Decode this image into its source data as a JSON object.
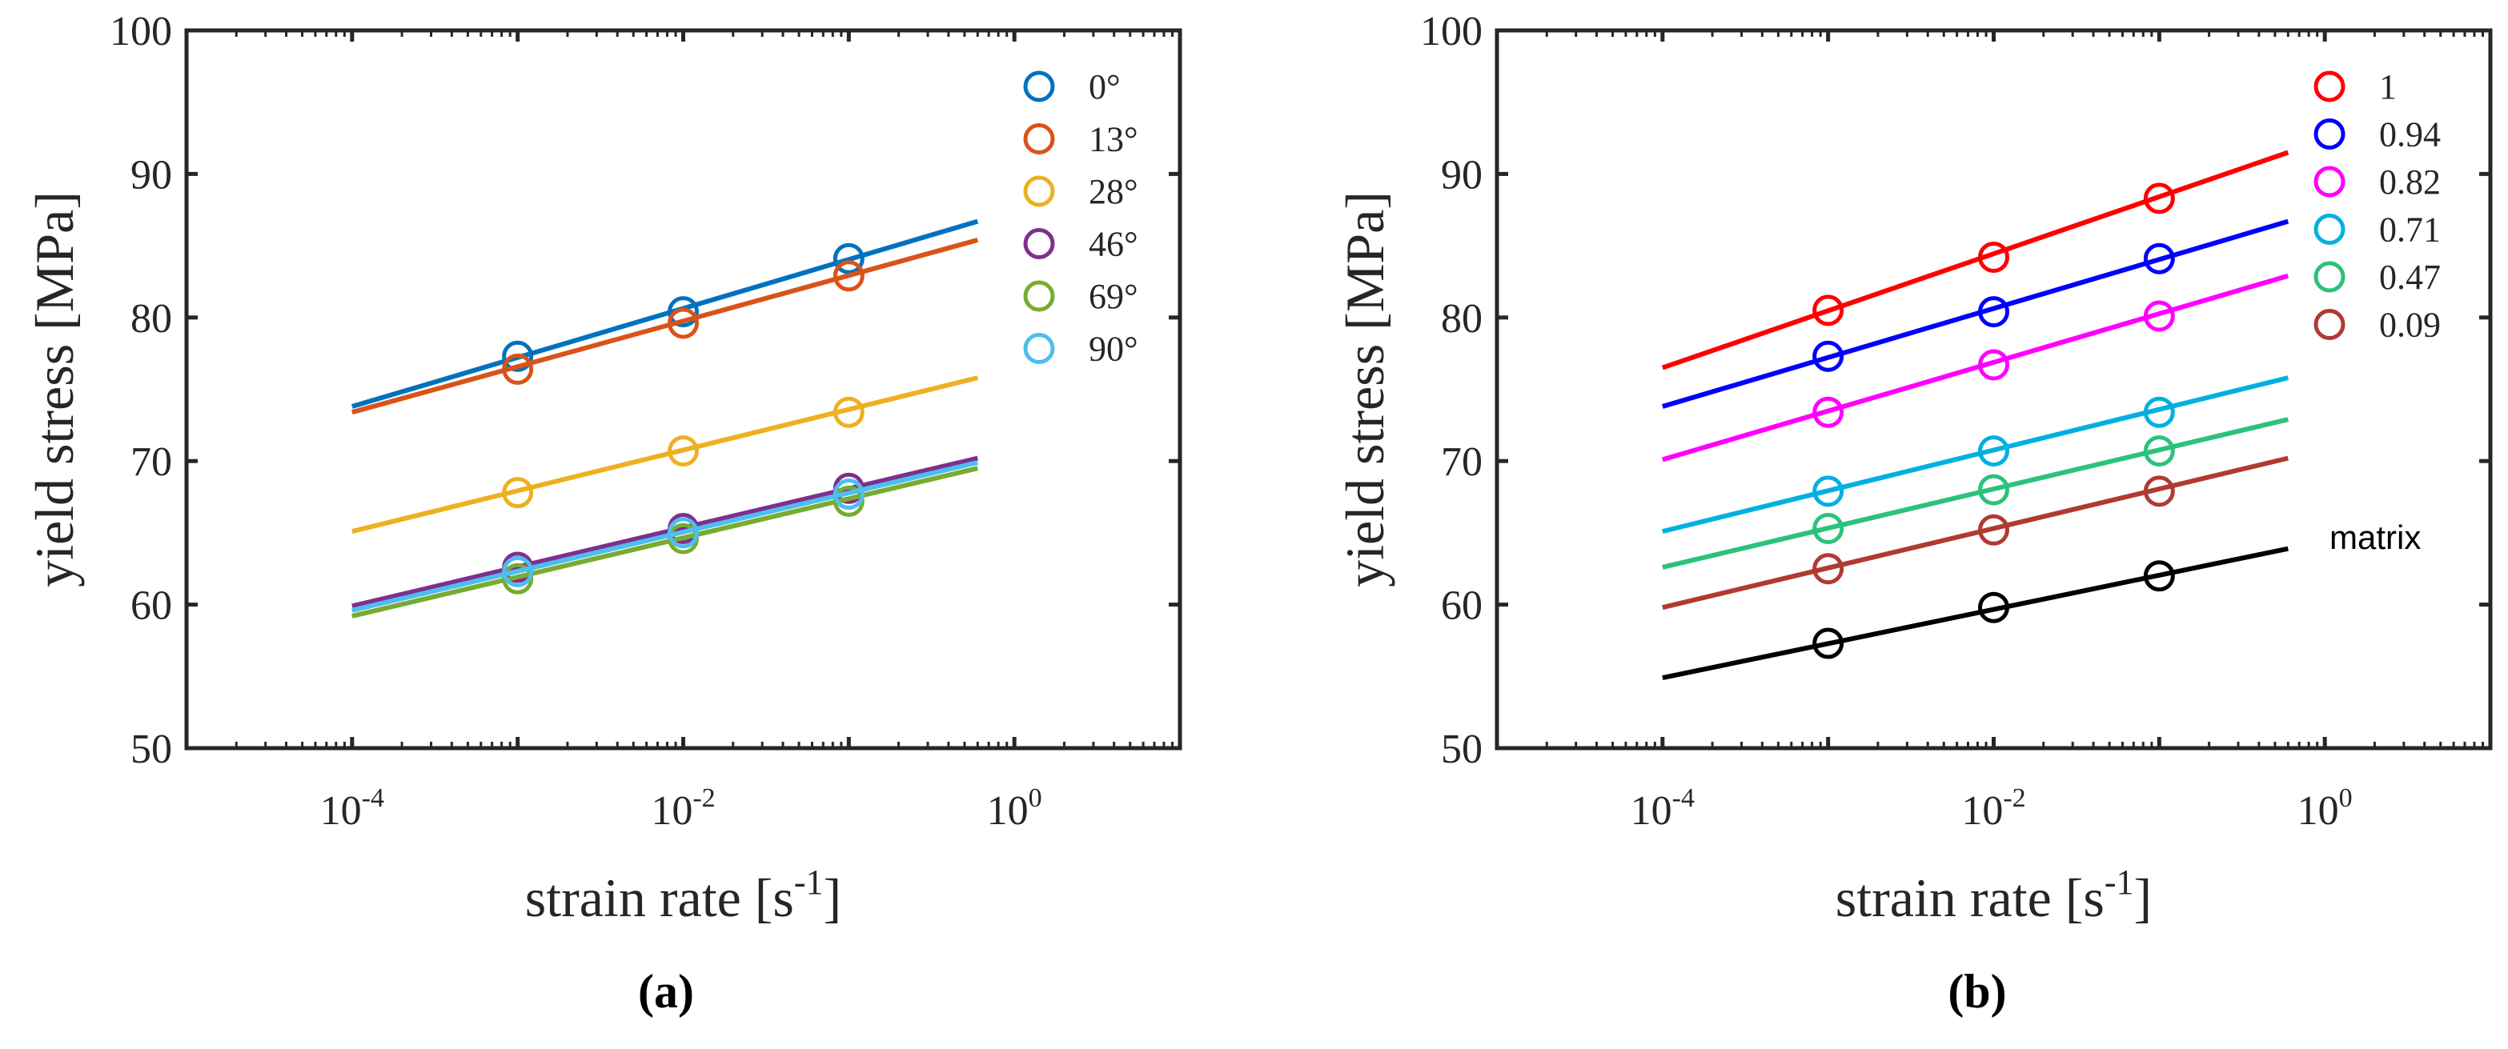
{
  "chart_data": [
    {
      "type": "line",
      "panel": "a",
      "caption": "(a)",
      "xscale": "log",
      "xlim": [
        1e-05,
        10
      ],
      "ylim": [
        50,
        100
      ],
      "xlabel": "strain rate [s",
      "xlabel_sup": "-1",
      "xlabel_end": "]",
      "ylabel": "yield stress [MPa]",
      "yticks": [
        "50",
        "60",
        "70",
        "80",
        "90",
        "100"
      ],
      "xticks": [
        {
          "base": "10",
          "exp": "-4"
        },
        {
          "base": "10",
          "exp": "-2"
        },
        {
          "base": "10",
          "exp": "0"
        }
      ],
      "fit_range": [
        0.0001,
        0.6
      ],
      "legend_position": "top-right",
      "series": [
        {
          "name": "0°",
          "color": "#0072BD",
          "points": [
            [
              0.001,
              77.3
            ],
            [
              0.01,
              80.4
            ],
            [
              0.1,
              84.1
            ]
          ],
          "fit": [
            73.8,
            86.7
          ]
        },
        {
          "name": "13°",
          "color": "#D95319",
          "points": [
            [
              0.001,
              76.4
            ],
            [
              0.01,
              79.6
            ],
            [
              0.1,
              82.9
            ]
          ],
          "fit": [
            73.4,
            85.4
          ]
        },
        {
          "name": "28°",
          "color": "#EDB120",
          "points": [
            [
              0.001,
              67.8
            ],
            [
              0.01,
              70.7
            ],
            [
              0.1,
              73.4
            ]
          ],
          "fit": [
            65.1,
            75.8
          ]
        },
        {
          "name": "46°",
          "color": "#7E2F8E",
          "points": [
            [
              0.001,
              62.6
            ],
            [
              0.01,
              65.3
            ],
            [
              0.1,
              68.1
            ]
          ],
          "fit": [
            59.9,
            70.2
          ]
        },
        {
          "name": "69°",
          "color": "#77AC30",
          "points": [
            [
              0.001,
              61.8
            ],
            [
              0.01,
              64.6
            ],
            [
              0.1,
              67.2
            ]
          ],
          "fit": [
            59.2,
            69.5
          ]
        },
        {
          "name": "90°",
          "color": "#4DBEEE",
          "points": [
            [
              0.001,
              62.3
            ],
            [
              0.01,
              65.0
            ],
            [
              0.1,
              67.7
            ]
          ],
          "fit": [
            59.6,
            69.9
          ]
        }
      ]
    },
    {
      "type": "line",
      "panel": "b",
      "caption": "(b)",
      "xscale": "log",
      "xlim": [
        1e-05,
        10
      ],
      "ylim": [
        50,
        100
      ],
      "xlabel": "strain rate [s",
      "xlabel_sup": "-1",
      "xlabel_end": "]",
      "ylabel": "yield stress [MPa]",
      "yticks": [
        "50",
        "60",
        "70",
        "80",
        "90",
        "100"
      ],
      "xticks": [
        {
          "base": "10",
          "exp": "-4"
        },
        {
          "base": "10",
          "exp": "-2"
        },
        {
          "base": "10",
          "exp": "0"
        }
      ],
      "fit_range": [
        0.0001,
        0.6
      ],
      "legend_position": "top-right",
      "annotation": "matrix",
      "series": [
        {
          "name": "1",
          "color": "#FF0000",
          "points": [
            [
              0.001,
              80.5
            ],
            [
              0.01,
              84.2
            ],
            [
              0.1,
              88.3
            ]
          ],
          "fit": [
            76.5,
            91.5
          ]
        },
        {
          "name": "0.94",
          "color": "#0000FF",
          "points": [
            [
              0.001,
              77.3
            ],
            [
              0.01,
              80.4
            ],
            [
              0.1,
              84.1
            ]
          ],
          "fit": [
            73.8,
            86.7
          ]
        },
        {
          "name": "0.82",
          "color": "#FF00FF",
          "points": [
            [
              0.001,
              73.4
            ],
            [
              0.01,
              76.7
            ],
            [
              0.1,
              80.1
            ]
          ],
          "fit": [
            70.1,
            82.9
          ]
        },
        {
          "name": "0.71",
          "color": "#00B0E0",
          "points": [
            [
              0.001,
              67.9
            ],
            [
              0.01,
              70.7
            ],
            [
              0.1,
              73.4
            ]
          ],
          "fit": [
            65.1,
            75.8
          ]
        },
        {
          "name": "0.47",
          "color": "#2BC27A",
          "points": [
            [
              0.001,
              65.3
            ],
            [
              0.01,
              68.0
            ],
            [
              0.1,
              70.7
            ]
          ],
          "fit": [
            62.6,
            72.9
          ]
        },
        {
          "name": "0.09",
          "color": "#B03A32",
          "points": [
            [
              0.001,
              62.5
            ],
            [
              0.01,
              65.2
            ],
            [
              0.1,
              67.9
            ]
          ],
          "fit": [
            59.8,
            70.2
          ]
        },
        {
          "name": "matrix",
          "in_legend": false,
          "color": "#000000",
          "points": [
            [
              0.001,
              57.3
            ],
            [
              0.01,
              59.8
            ],
            [
              0.1,
              62.0
            ]
          ],
          "fit": [
            54.9,
            63.9
          ]
        }
      ]
    }
  ]
}
